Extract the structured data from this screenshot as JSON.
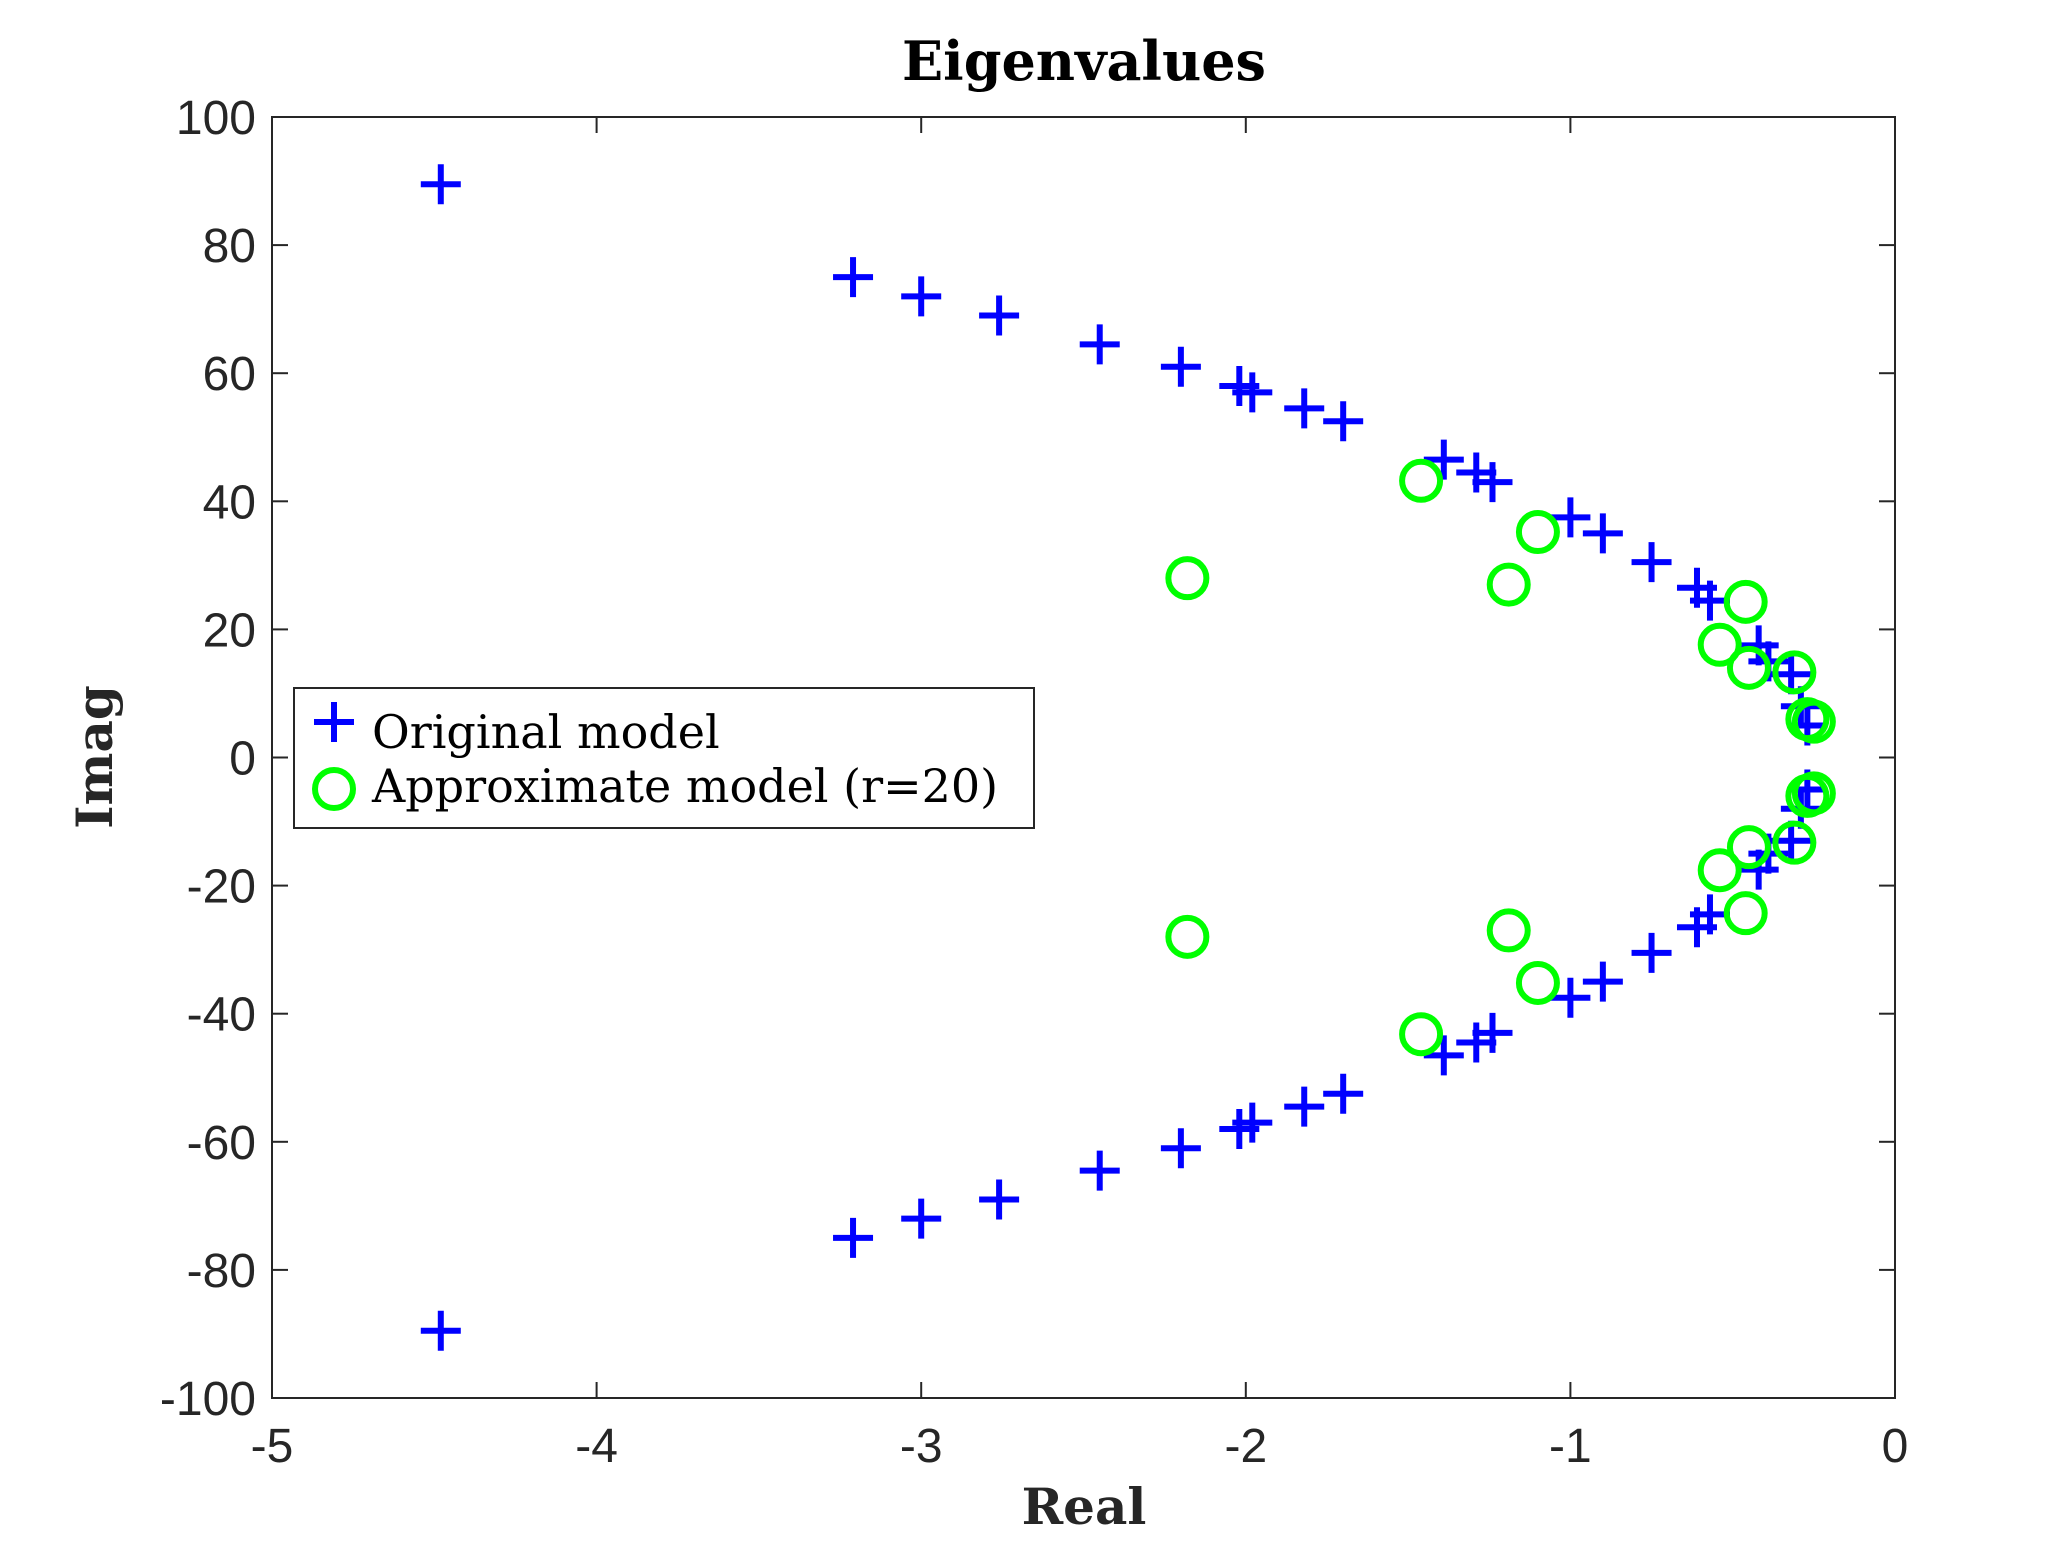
{
  "chart_data": {
    "type": "scatter",
    "title": "Eigenvalues",
    "xlabel": "Real",
    "ylabel": "Imag",
    "xlim": [
      -5,
      0
    ],
    "ylim": [
      -100,
      100
    ],
    "xticks": [
      "-5",
      "-4",
      "-3",
      "-2",
      "-1",
      "0"
    ],
    "yticks": [
      "100",
      "80",
      "60",
      "40",
      "20",
      "0",
      "-20",
      "-40",
      "-60",
      "-80",
      "-100"
    ],
    "grid": false,
    "legend_position": "middle-left",
    "series": [
      {
        "name": "Original model",
        "marker": "plus",
        "color": "#0000ff",
        "points": [
          [
            -4.48,
            89.5
          ],
          [
            -4.48,
            -89.5
          ],
          [
            -3.21,
            75
          ],
          [
            -3.21,
            -75
          ],
          [
            -3.0,
            72
          ],
          [
            -3.0,
            -72
          ],
          [
            -2.76,
            69
          ],
          [
            -2.76,
            -69
          ],
          [
            -2.45,
            64.5
          ],
          [
            -2.45,
            -64.5
          ],
          [
            -2.2,
            61
          ],
          [
            -2.2,
            -61
          ],
          [
            -2.02,
            58
          ],
          [
            -2.02,
            -58
          ],
          [
            -1.98,
            57
          ],
          [
            -1.98,
            -57
          ],
          [
            -1.82,
            54.5
          ],
          [
            -1.82,
            -54.5
          ],
          [
            -1.7,
            52.5
          ],
          [
            -1.7,
            -52.5
          ],
          [
            -1.39,
            46.5
          ],
          [
            -1.39,
            -46.5
          ],
          [
            -1.29,
            44.5
          ],
          [
            -1.29,
            -44.5
          ],
          [
            -1.24,
            43
          ],
          [
            -1.24,
            -43
          ],
          [
            -1.0,
            37.5
          ],
          [
            -1.0,
            -37.5
          ],
          [
            -0.9,
            35
          ],
          [
            -0.9,
            -35
          ],
          [
            -0.75,
            30.5
          ],
          [
            -0.75,
            -30.5
          ],
          [
            -0.61,
            26.5
          ],
          [
            -0.61,
            -26.5
          ],
          [
            -0.57,
            24.5
          ],
          [
            -0.57,
            -24.5
          ],
          [
            -0.42,
            17.5
          ],
          [
            -0.42,
            -17.5
          ],
          [
            -0.39,
            15
          ],
          [
            -0.39,
            -15
          ],
          [
            -0.32,
            13
          ],
          [
            -0.32,
            -13
          ],
          [
            -0.29,
            8
          ],
          [
            -0.29,
            -8
          ],
          [
            -0.27,
            5
          ],
          [
            -0.27,
            -5
          ]
        ]
      },
      {
        "name": "Approximate model (r=20)",
        "marker": "circle",
        "color": "#00ff00",
        "points": [
          [
            -2.18,
            28
          ],
          [
            -2.18,
            -28
          ],
          [
            -1.46,
            43.2
          ],
          [
            -1.46,
            -43.2
          ],
          [
            -1.1,
            35.2
          ],
          [
            -1.1,
            -35.2
          ],
          [
            -1.19,
            27
          ],
          [
            -1.19,
            -27
          ],
          [
            -0.46,
            24.3
          ],
          [
            -0.46,
            -24.3
          ],
          [
            -0.54,
            17.6
          ],
          [
            -0.54,
            -17.6
          ],
          [
            -0.45,
            14
          ],
          [
            -0.45,
            -14
          ],
          [
            -0.31,
            13.3
          ],
          [
            -0.31,
            -13.3
          ],
          [
            -0.27,
            6
          ],
          [
            -0.27,
            -6
          ],
          [
            -0.25,
            5.6
          ],
          [
            -0.25,
            -5.6
          ]
        ]
      }
    ]
  }
}
